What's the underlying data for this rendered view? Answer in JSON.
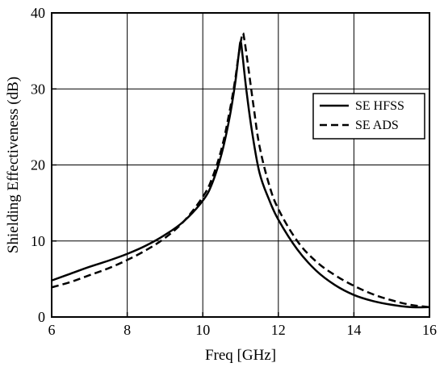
{
  "chart_data": {
    "type": "line",
    "xlabel": "Freq [GHz]",
    "ylabel": "Shielding Effectiveness (dB)",
    "xlim": [
      6,
      16
    ],
    "ylim": [
      0,
      40
    ],
    "xticks": [
      6,
      8,
      10,
      12,
      14,
      16
    ],
    "yticks": [
      0,
      10,
      20,
      30,
      40
    ],
    "grid": true,
    "legend_position": "right",
    "series": [
      {
        "name": "SE HFSS",
        "style": "solid",
        "color": "#000000",
        "x": [
          6,
          6.5,
          7,
          7.5,
          8,
          8.5,
          9,
          9.5,
          10,
          10.25,
          10.5,
          10.7,
          10.85,
          10.95,
          11.0,
          11.05,
          11.15,
          11.3,
          11.5,
          11.75,
          12,
          12.5,
          13,
          13.5,
          14,
          14.5,
          15,
          15.5,
          16
        ],
        "y": [
          4.8,
          5.7,
          6.6,
          7.4,
          8.3,
          9.4,
          10.8,
          12.6,
          15.3,
          17.6,
          21.5,
          26.0,
          30.5,
          34.5,
          36.2,
          34.5,
          30.0,
          24.5,
          19.0,
          15.5,
          12.8,
          8.9,
          6.1,
          4.2,
          2.9,
          2.1,
          1.6,
          1.3,
          1.3
        ]
      },
      {
        "name": "SE ADS",
        "style": "dashed",
        "color": "#000000",
        "x": [
          6,
          6.5,
          7,
          7.5,
          8,
          8.5,
          9,
          9.5,
          10,
          10.25,
          10.5,
          10.7,
          10.85,
          10.95,
          11.05,
          11.1,
          11.2,
          11.35,
          11.5,
          11.75,
          12,
          12.5,
          13,
          13.5,
          14,
          14.5,
          15,
          15.5,
          16
        ],
        "y": [
          3.9,
          4.6,
          5.5,
          6.4,
          7.5,
          8.8,
          10.4,
          12.6,
          15.8,
          18.3,
          22.2,
          26.8,
          31.0,
          34.5,
          37.2,
          36.5,
          33.0,
          27.5,
          22.5,
          17.5,
          14.2,
          10.0,
          7.3,
          5.5,
          4.1,
          3.0,
          2.2,
          1.6,
          1.3
        ]
      }
    ]
  }
}
